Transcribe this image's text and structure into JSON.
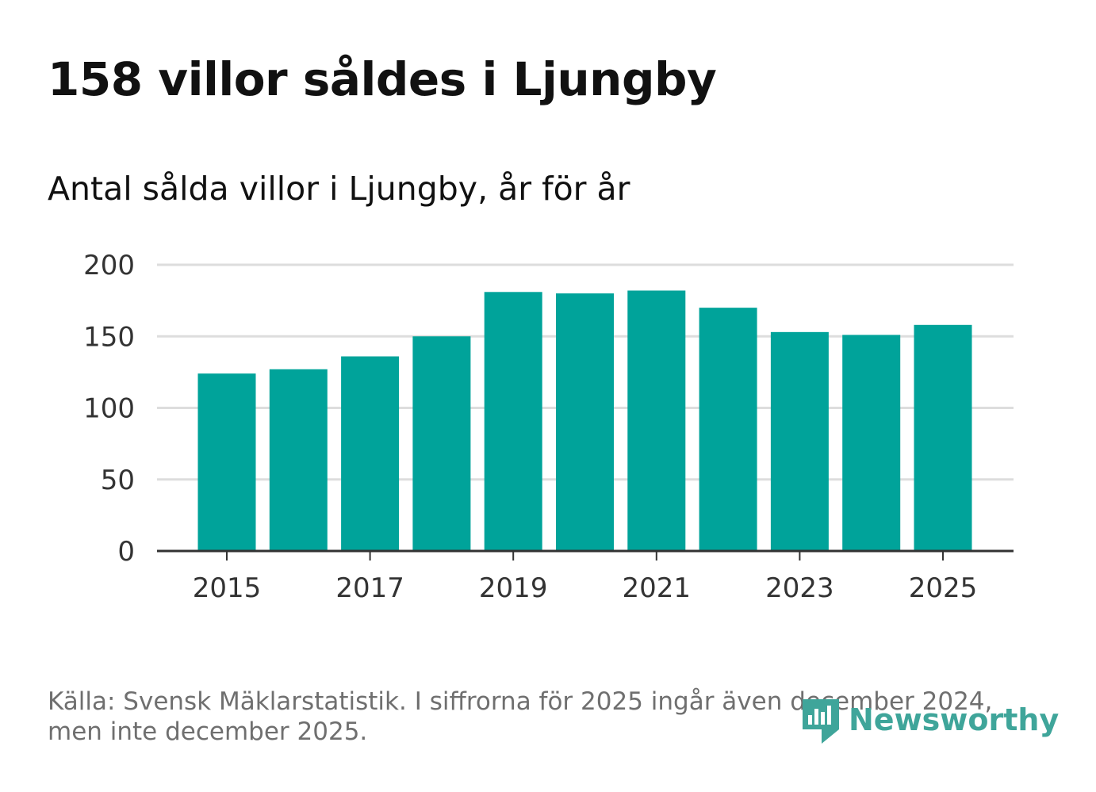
{
  "title": "158 villor såldes i Ljungby",
  "subtitle": "Antal sålda villor i Ljungby, år för år",
  "footer": {
    "line1": "Källa: Svensk Mäklarstatistik. I siffrorna för 2025 ingår även december 2024,",
    "line2": "men inte december 2025."
  },
  "logo": {
    "text": "Newsworthy",
    "icon": "newsworthy-logo-icon"
  },
  "colors": {
    "bar": "#00a39a",
    "grid": "#dddddd",
    "axis": "#333333",
    "tick_text": "#333333"
  },
  "chart_data": {
    "type": "bar",
    "title": "Antal sålda villor i Ljungby, år för år",
    "xlabel": "",
    "ylabel": "",
    "categories": [
      "2015",
      "2016",
      "2017",
      "2018",
      "2019",
      "2020",
      "2021",
      "2022",
      "2023",
      "2024",
      "2025"
    ],
    "values": [
      124,
      127,
      136,
      150,
      181,
      180,
      182,
      170,
      153,
      151,
      158
    ],
    "ylim": [
      0,
      200
    ],
    "yticks": [
      "0",
      "50",
      "100",
      "150",
      "200"
    ],
    "xticks": [
      "2015",
      "2017",
      "2019",
      "2021",
      "2023",
      "2025"
    ],
    "grid": true,
    "legend": "none"
  }
}
